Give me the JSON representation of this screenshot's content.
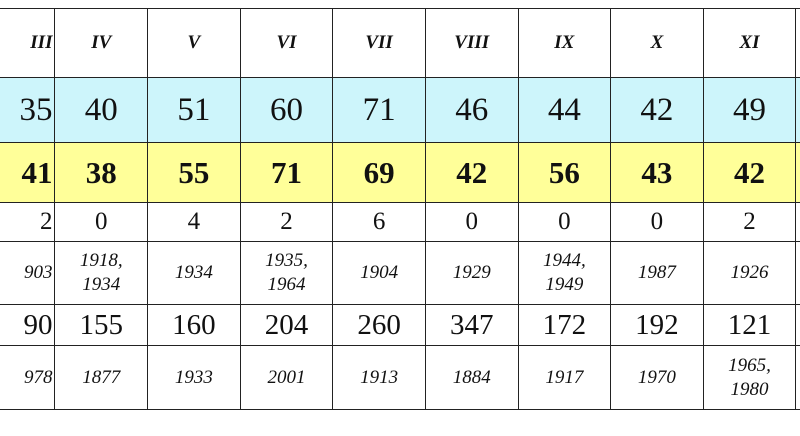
{
  "header": [
    "III",
    "IV",
    "V",
    "VI",
    "VII",
    "VIII",
    "IX",
    "X",
    "XI"
  ],
  "rows": {
    "average": [
      "35",
      "40",
      "51",
      "60",
      "71",
      "46",
      "44",
      "42",
      "49"
    ],
    "maximum": [
      "41",
      "38",
      "55",
      "71",
      "69",
      "42",
      "56",
      "43",
      "42"
    ],
    "count": [
      "2",
      "0",
      "4",
      "2",
      "6",
      "0",
      "0",
      "0",
      "2"
    ],
    "years": [
      [
        "903"
      ],
      [
        "1918,",
        "1934"
      ],
      [
        "1934"
      ],
      [
        "1935,",
        "1964"
      ],
      [
        "1904"
      ],
      [
        "1929"
      ],
      [
        "1944,",
        "1949"
      ],
      [
        "1987"
      ],
      [
        "1926"
      ]
    ],
    "record": [
      "90",
      "155",
      "160",
      "204",
      "260",
      "347",
      "172",
      "192",
      "121"
    ],
    "record_years": [
      [
        "978"
      ],
      [
        "1877"
      ],
      [
        "1933"
      ],
      [
        "2001"
      ],
      [
        "1913"
      ],
      [
        "1884"
      ],
      [
        "1917"
      ],
      [
        "1970"
      ],
      [
        "1965,",
        "1980"
      ]
    ]
  }
}
